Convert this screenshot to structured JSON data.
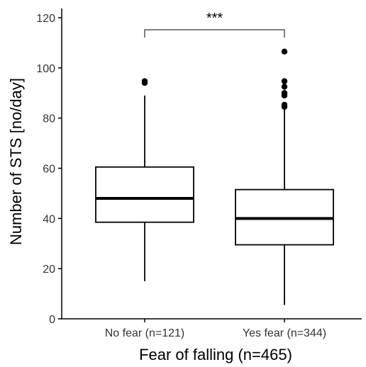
{
  "chart_data": {
    "type": "boxplot",
    "xlabel": "Fear of falling (n=465)",
    "ylabel": "Number of STS [no/day]",
    "ylim": [
      0,
      125
    ],
    "yticks": [
      0,
      20,
      40,
      60,
      80,
      100,
      120
    ],
    "categories": [
      "No fear (n=121)",
      "Yes fear (n=344)"
    ],
    "boxes": [
      {
        "q1": 38.5,
        "median": 48,
        "q3": 60.5,
        "whisker_low": 15,
        "whisker_high": 89,
        "outliers": [
          94,
          94.7
        ]
      },
      {
        "q1": 29.5,
        "median": 40,
        "q3": 51.5,
        "whisker_low": 5.5,
        "whisker_high": 84,
        "outliers": [
          84.5,
          85.3,
          89,
          90,
          92.5,
          94.7,
          106.5
        ]
      }
    ],
    "significance": {
      "label": "***",
      "between": [
        0,
        1
      ]
    },
    "grid": false
  }
}
